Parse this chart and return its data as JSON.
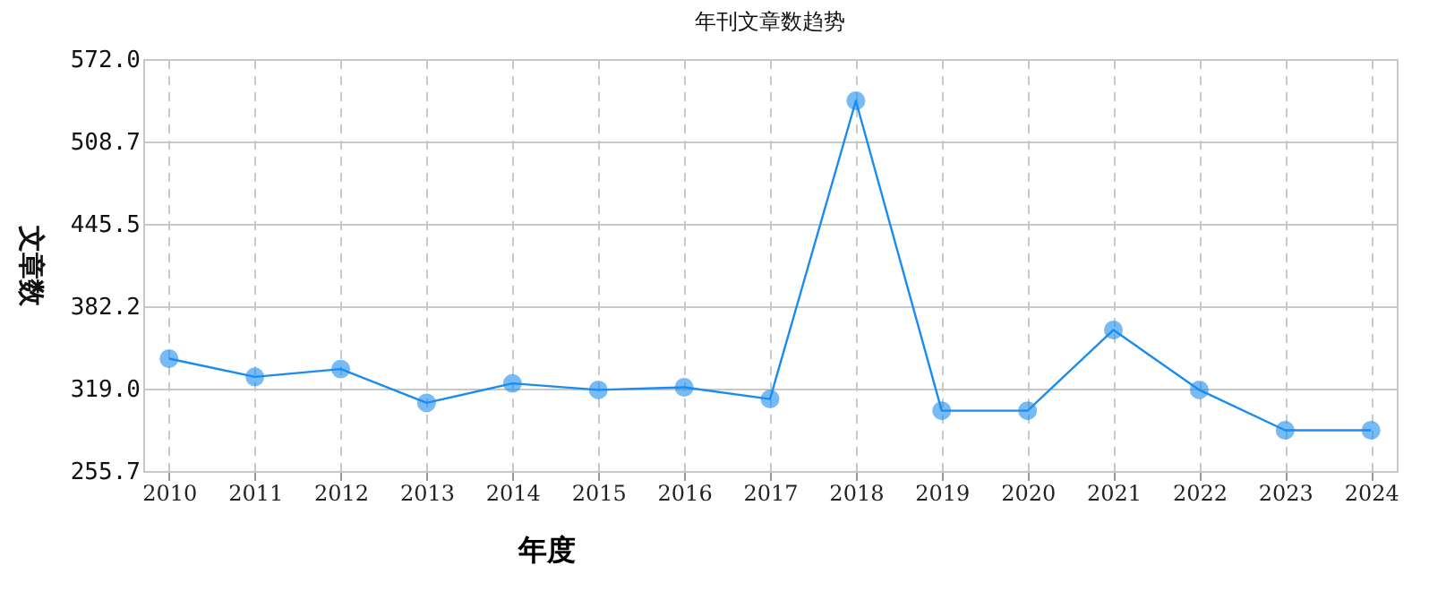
{
  "chart_data": {
    "type": "line",
    "title": "年刊文章数趋势",
    "xlabel": "年度",
    "ylabel": "文章数",
    "categories": [
      "2010",
      "2011",
      "2012",
      "2013",
      "2014",
      "2015",
      "2016",
      "2017",
      "2018",
      "2019",
      "2020",
      "2021",
      "2022",
      "2023",
      "2024"
    ],
    "series": [
      {
        "color": "#1a8cf0",
        "values": [
          342,
          328,
          334,
          308,
          323,
          318,
          320,
          311,
          540,
          302,
          302,
          364,
          318,
          287,
          287
        ]
      }
    ],
    "ylim": [
      255.7,
      572.0
    ],
    "yticks": [
      {
        "value": 255.7,
        "label": "255.7"
      },
      {
        "value": 319.0,
        "label": "319.0"
      },
      {
        "value": 382.2,
        "label": "382.2"
      },
      {
        "value": 445.5,
        "label": "445.5"
      },
      {
        "value": 508.7,
        "label": "508.7"
      },
      {
        "value": 572.0,
        "label": "572.0"
      }
    ],
    "grid": true,
    "marker": "circle",
    "line_style": "solid"
  }
}
